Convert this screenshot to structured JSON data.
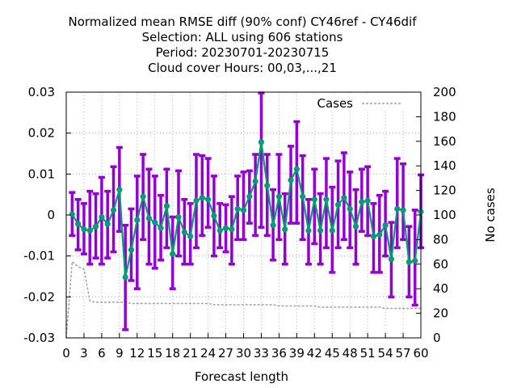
{
  "chart_data": {
    "type": "line",
    "title_lines": [
      "Normalized mean RMSE diff (90% conf) CY46ref - CY46dif",
      "Selection: ALL using   606 stations",
      "Period: 20230701-20230715",
      "Cloud cover   Hours:  00,03,...,21"
    ],
    "xlabel": "Forecast length",
    "ylabel_right": "No cases",
    "xlim": [
      0,
      60
    ],
    "ylim": [
      -0.03,
      0.03
    ],
    "y2lim": [
      0,
      200
    ],
    "x_ticks": [
      0,
      3,
      6,
      9,
      12,
      15,
      18,
      21,
      24,
      27,
      30,
      33,
      36,
      39,
      42,
      45,
      48,
      51,
      54,
      57,
      60
    ],
    "y_ticks": [
      "-0.03",
      "-0.02",
      "-0.01",
      "0",
      "0.01",
      "0.02",
      "0.03"
    ],
    "y_tick_values": [
      -0.03,
      -0.02,
      -0.01,
      0,
      0.01,
      0.02,
      0.03
    ],
    "y2_ticks": [
      0,
      20,
      40,
      60,
      80,
      100,
      120,
      140,
      160,
      180,
      200
    ],
    "grid": true,
    "legend_position": "top-right",
    "colors": {
      "errorbar": "#9400d3",
      "mean_line": "#009e73",
      "cases_line": "#a0a0a0"
    },
    "series": [
      {
        "kind": "mean_with_confidence",
        "x": [
          1,
          2,
          3,
          4,
          5,
          6,
          7,
          8,
          9,
          10,
          11,
          12,
          13,
          14,
          15,
          16,
          17,
          18,
          19,
          20,
          21,
          22,
          23,
          24,
          25,
          26,
          27,
          28,
          29,
          30,
          31,
          32,
          33,
          34,
          35,
          36,
          37,
          38,
          39,
          40,
          41,
          42,
          43,
          44,
          45,
          46,
          47,
          48,
          49,
          50,
          51,
          52,
          53,
          54,
          55,
          56,
          57,
          58,
          59,
          60
        ],
        "y": [
          0.0002,
          -0.0022,
          -0.0035,
          -0.0038,
          -0.0028,
          -0.0005,
          -0.0022,
          0.0012,
          0.0062,
          -0.0152,
          -0.0085,
          -0.0012,
          0.0045,
          -0.0008,
          -0.0018,
          -0.0032,
          0.0022,
          -0.0095,
          -0.0005,
          -0.0042,
          -0.0052,
          0.0035,
          0.0042,
          0.0038,
          -0.0002,
          -0.0038,
          -0.0032,
          -0.0035,
          0.0015,
          0.0012,
          0.0045,
          0.0082,
          0.0178,
          0.0072,
          -0.0025,
          0.0045,
          -0.0035,
          0.0085,
          0.0112,
          0.0045,
          -0.0038,
          0.0038,
          -0.0038,
          0.0038,
          -0.0038,
          0.0025,
          0.0042,
          0.0015,
          -0.0028,
          0.0032,
          0.0035,
          -0.0052,
          -0.0048,
          -0.0025,
          -0.0108,
          0.0015,
          0.0012,
          -0.0115,
          -0.0112,
          0.0008
        ],
        "lower": [
          -0.005,
          -0.0085,
          -0.0095,
          -0.012,
          -0.0105,
          -0.012,
          -0.0105,
          -0.009,
          -0.004,
          -0.028,
          -0.016,
          -0.018,
          -0.006,
          -0.012,
          -0.013,
          -0.011,
          -0.008,
          -0.018,
          -0.01,
          -0.012,
          -0.012,
          -0.008,
          -0.005,
          -0.003,
          -0.01,
          -0.008,
          -0.009,
          -0.012,
          -0.006,
          -0.006,
          -0.002,
          -0.005,
          -0.003,
          -0.005,
          -0.011,
          -0.006,
          -0.012,
          -0.002,
          -0.002,
          -0.006,
          -0.012,
          -0.007,
          -0.012,
          -0.008,
          -0.014,
          -0.008,
          -0.006,
          -0.008,
          -0.012,
          -0.004,
          -0.005,
          -0.014,
          -0.014,
          -0.01,
          -0.02,
          -0.008,
          -0.006,
          -0.02,
          -0.022,
          -0.008
        ],
        "upper": [
          0.0055,
          0.0038,
          0.0028,
          0.0058,
          0.0052,
          0.0092,
          0.0058,
          0.0118,
          0.0165,
          -0.0025,
          0.0015,
          0.0095,
          0.0148,
          0.0112,
          0.0095,
          0.0048,
          0.0112,
          -0.0005,
          0.0108,
          0.0038,
          0.0028,
          0.0148,
          0.0145,
          0.0138,
          0.0095,
          0.0028,
          0.0025,
          0.0045,
          0.0095,
          0.0105,
          0.0108,
          0.0148,
          0.0298,
          0.0148,
          0.0062,
          0.0148,
          0.0052,
          0.0168,
          0.0228,
          0.0145,
          0.0038,
          0.0112,
          0.0052,
          0.0138,
          0.0068,
          0.0132,
          0.0152,
          0.0105,
          0.0062,
          0.0112,
          0.0118,
          0.0028,
          0.0048,
          0.0058,
          -0.0018,
          0.0138,
          0.0125,
          -0.0028,
          0.0012,
          0.0098
        ]
      },
      {
        "name": "Cases",
        "axis": "right",
        "x": [
          0,
          1,
          2,
          3,
          4,
          5,
          6,
          7,
          8,
          9,
          10,
          11,
          12,
          13,
          14,
          15,
          16,
          17,
          18,
          19,
          20,
          21,
          22,
          23,
          24,
          25,
          26,
          27,
          28,
          29,
          30,
          31,
          32,
          33,
          34,
          35,
          36,
          37,
          38,
          39,
          40,
          41,
          42,
          43,
          44,
          45,
          46,
          47,
          48,
          49,
          50,
          51,
          52,
          53,
          54,
          55,
          56,
          57,
          58,
          59,
          60
        ],
        "values": [
          0,
          62,
          58,
          56,
          30,
          29,
          29,
          29,
          29,
          29,
          29,
          28,
          28,
          28,
          28,
          28,
          28,
          28,
          28,
          28,
          28,
          28,
          28,
          28,
          28,
          27,
          27,
          27,
          27,
          27,
          27,
          27,
          27,
          27,
          27,
          27,
          26,
          26,
          26,
          26,
          26,
          26,
          26,
          25,
          25,
          25,
          25,
          25,
          25,
          25,
          25,
          25,
          25,
          25,
          24,
          24,
          24,
          24,
          24,
          24,
          24
        ]
      }
    ]
  }
}
